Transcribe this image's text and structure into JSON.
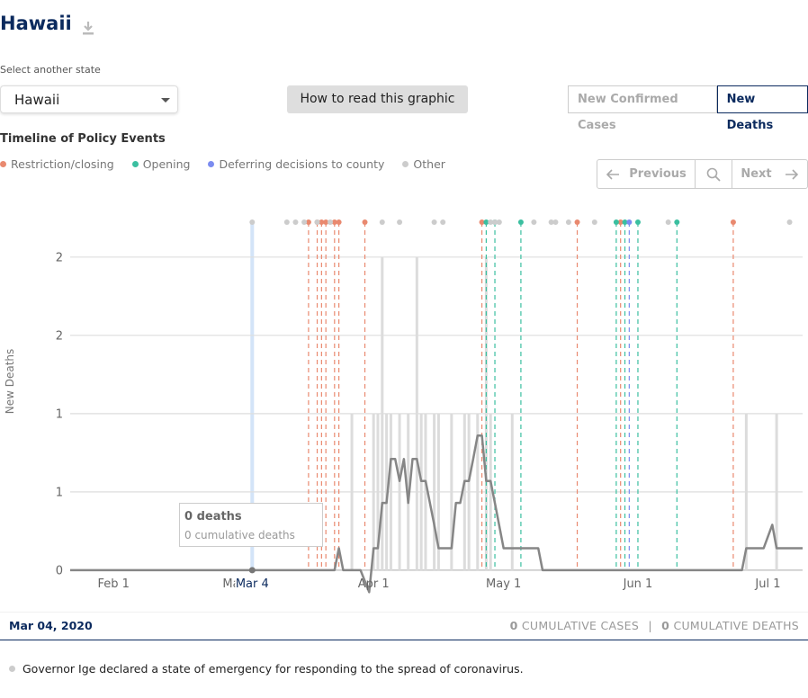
{
  "header": {
    "title": "Hawaii"
  },
  "state_select": {
    "label": "Select another state",
    "value": "Hawaii"
  },
  "help_button": "How to read this graphic",
  "tabs": [
    {
      "label": "New Confirmed Cases",
      "active": false
    },
    {
      "label": "New Deaths",
      "active": true
    }
  ],
  "timeline": {
    "title": "Timeline of Policy Events",
    "previous": "Previous",
    "next": "Next"
  },
  "chart_data": {
    "type": "line",
    "y_label": "New Deaths",
    "xlim": [
      "2020-01-22",
      "2020-07-09"
    ],
    "ylim": [
      -0.15,
      2.2
    ],
    "yticks": [
      0,
      {
        "value": 0.5,
        "label": "1"
      },
      1,
      {
        "value": 1.5,
        "label": "2"
      },
      2
    ],
    "xticks": [
      {
        "value": "2020-02-01",
        "label": "Feb 1"
      },
      {
        "value": "2020-03-01",
        "label": "Mar 1"
      },
      {
        "value": "2020-04-01",
        "label": "Apr 1"
      },
      {
        "value": "2020-05-01",
        "label": "May 1"
      },
      {
        "value": "2020-06-01",
        "label": "Jun 1"
      },
      {
        "value": "2020-07-01",
        "label": "Jul 1"
      }
    ],
    "grid": true,
    "bars": {
      "color": "#dcdcdc",
      "x": [
        "2020-03-27",
        "2020-04-01",
        "2020-04-02",
        "2020-04-03",
        "2020-04-04",
        "2020-04-05",
        "2020-04-07",
        "2020-04-09",
        "2020-04-11",
        "2020-04-12",
        "2020-04-13",
        "2020-04-15",
        "2020-04-16",
        "2020-04-19",
        "2020-04-22",
        "2020-04-23",
        "2020-04-25",
        "2020-04-27",
        "2020-04-28",
        "2020-05-03",
        "2020-06-26",
        "2020-07-03"
      ],
      "values": [
        1,
        1,
        1,
        2,
        1,
        1,
        1,
        1,
        2,
        1,
        1,
        1,
        1,
        1,
        1,
        1,
        1,
        2,
        1,
        1,
        1,
        1
      ]
    },
    "series": [
      {
        "color": "#868686",
        "x": [
          "2020-01-22",
          "2020-03-23",
          "2020-03-24",
          "2020-03-25",
          "2020-03-29",
          "2020-03-31",
          "2020-04-01",
          "2020-04-02",
          "2020-04-03",
          "2020-04-04",
          "2020-04-05",
          "2020-04-06",
          "2020-04-07",
          "2020-04-08",
          "2020-04-09",
          "2020-04-10",
          "2020-04-11",
          "2020-04-12",
          "2020-04-13",
          "2020-04-14",
          "2020-04-15",
          "2020-04-16",
          "2020-04-19",
          "2020-04-20",
          "2020-04-21",
          "2020-04-22",
          "2020-04-23",
          "2020-04-24",
          "2020-04-25",
          "2020-04-26",
          "2020-04-27",
          "2020-04-28",
          "2020-04-29",
          "2020-05-01",
          "2020-05-09",
          "2020-05-10",
          "2020-06-25",
          "2020-06-26",
          "2020-06-30",
          "2020-07-02",
          "2020-07-03",
          "2020-07-09"
        ],
        "values": [
          0,
          0,
          0.14,
          0,
          0,
          -0.14,
          0.14,
          0.14,
          0.43,
          0.43,
          0.71,
          0.71,
          0.57,
          0.71,
          0.43,
          0.71,
          0.71,
          0.57,
          0.57,
          0.43,
          0.29,
          0.14,
          0.14,
          0.43,
          0.43,
          0.57,
          0.57,
          0.71,
          0.86,
          0.86,
          0.57,
          0.57,
          0.43,
          0.14,
          0.14,
          0,
          0,
          0.14,
          0.14,
          0.29,
          0.14,
          0.14
        ]
      }
    ],
    "events": [
      {
        "name": "Restriction/closing",
        "color": "#e9896f",
        "dashed": true,
        "x": [
          "2020-03-17",
          "2020-03-19",
          "2020-03-20",
          "2020-03-21",
          "2020-03-23",
          "2020-03-24",
          "2020-03-30",
          "2020-04-26",
          "2020-05-18",
          "2020-05-28",
          "2020-06-23"
        ]
      },
      {
        "name": "Opening",
        "color": "#3bbfa0",
        "dashed": true,
        "x": [
          "2020-04-27",
          "2020-04-29",
          "2020-05-05",
          "2020-05-27",
          "2020-05-29",
          "2020-06-01",
          "2020-06-10"
        ]
      },
      {
        "name": "Deferring decisions to county",
        "color": "#7b8cf0",
        "dashed": true,
        "x": [
          "2020-05-30"
        ]
      },
      {
        "name": "Other",
        "color": "#cccccc",
        "dashed": false,
        "x": [
          "2020-03-04",
          "2020-03-12",
          "2020-03-14",
          "2020-03-16",
          "2020-03-19",
          "2020-03-22",
          "2020-04-03",
          "2020-04-07",
          "2020-04-15",
          "2020-04-17",
          "2020-04-28",
          "2020-04-29",
          "2020-04-30",
          "2020-05-08",
          "2020-05-12",
          "2020-05-13",
          "2020-05-16",
          "2020-05-22",
          "2020-06-08",
          "2020-07-06"
        ]
      }
    ],
    "selected": {
      "x": "2020-03-04",
      "label": "Mar 4",
      "value": 0,
      "highlight": "#d3e4f8"
    },
    "tooltip": {
      "title": "0 deaths",
      "subtitle": "0 cumulative deaths"
    }
  },
  "footer": {
    "date": "Mar 04, 2020",
    "cumulative_cases": {
      "value": 0,
      "label": "CUMULATIVE CASES"
    },
    "separator": "|",
    "cumulative_deaths": {
      "value": 0,
      "label": "CUMULATIVE DEATHS"
    }
  },
  "event_description": "Governor Ige declared a state of emergency for responding to the spread of coronavirus."
}
